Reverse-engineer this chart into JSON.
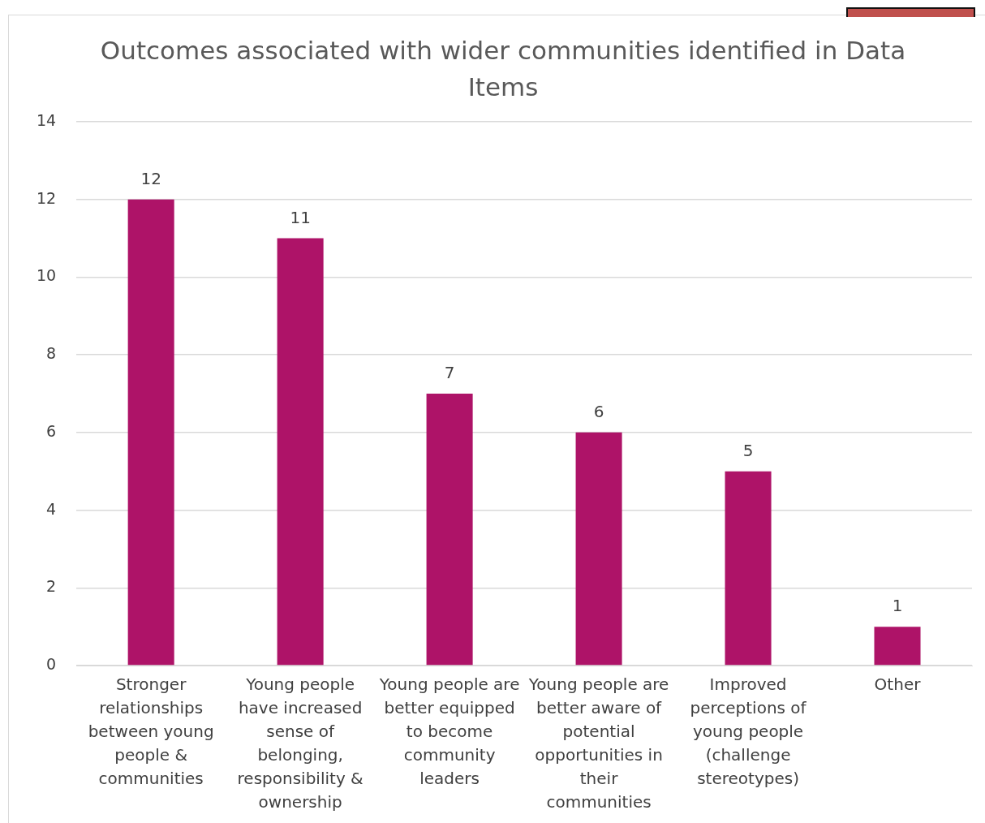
{
  "chart_data": {
    "type": "bar",
    "title": "Outcomes associated with wider communities identified in Data Items",
    "categories": [
      "Stronger relationships between young people & communities",
      "Young people have increased sense of belonging, responsibility & ownership",
      "Young people are better equipped to become community leaders",
      "Young people are better aware of potential opportunities in their communities",
      "Improved perceptions of young people (challenge stereotypes)",
      "Other"
    ],
    "values": [
      12,
      11,
      7,
      6,
      5,
      1
    ],
    "color": "#ae1368",
    "ylim": [
      0,
      14
    ],
    "yticks": [
      0,
      2,
      4,
      6,
      8,
      10,
      12,
      14
    ],
    "grid": "y",
    "data_labels": true
  }
}
